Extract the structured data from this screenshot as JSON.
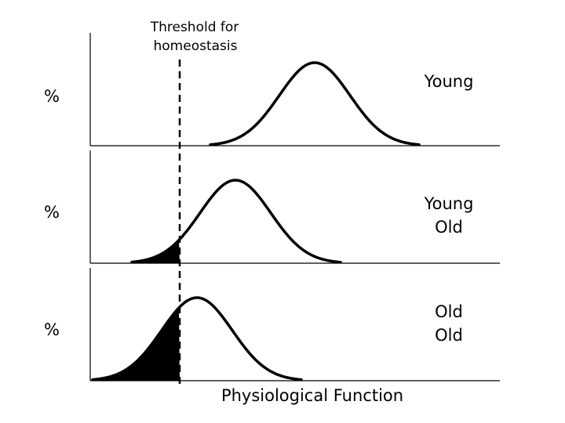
{
  "threshold_label": [
    "Threshold for",
    "homeostasis"
  ],
  "x_axis_label": "Physiological Function",
  "panels": [
    {
      "y_label": "%",
      "group_label": [
        "Young"
      ]
    },
    {
      "y_label": "%",
      "group_label": [
        "Young",
        "Old"
      ]
    },
    {
      "y_label": "%",
      "group_label": [
        "Old",
        "Old"
      ]
    }
  ],
  "colors": {
    "curve": "#000000",
    "shade": "#000000",
    "axis": "#000000"
  }
}
